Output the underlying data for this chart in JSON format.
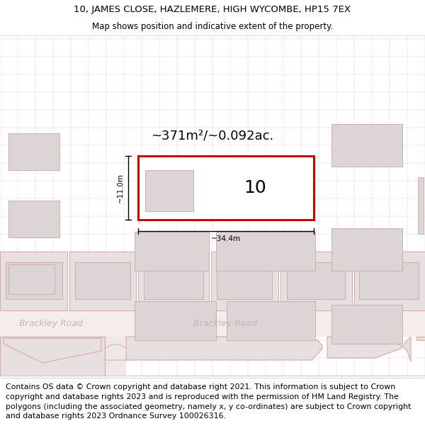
{
  "title_line1": "10, JAMES CLOSE, HAZLEMERE, HIGH WYCOMBE, HP15 7EX",
  "title_line2": "Map shows position and indicative extent of the property.",
  "footer_text": "Contains OS data © Crown copyright and database right 2021. This information is subject to Crown copyright and database rights 2023 and is reproduced with the permission of HM Land Registry. The polygons (including the associated geometry, namely x, y co-ordinates) are subject to Crown copyright and database rights 2023 Ordnance Survey 100026316.",
  "bg_color": "#ffffff",
  "map_bg": "#f7f0f0",
  "building_color": "#e8e0e0",
  "building_edge": "#d8a8a8",
  "highlight_color": "#cc0000",
  "road_label_color": "#c0b8b8",
  "road_label1": "Brackley Road",
  "road_label2": "Brackley Road",
  "area_label": "~371m²/~0.092ac.",
  "number_label": "10",
  "dim_width": "~34.4m",
  "dim_height": "~11.0m"
}
